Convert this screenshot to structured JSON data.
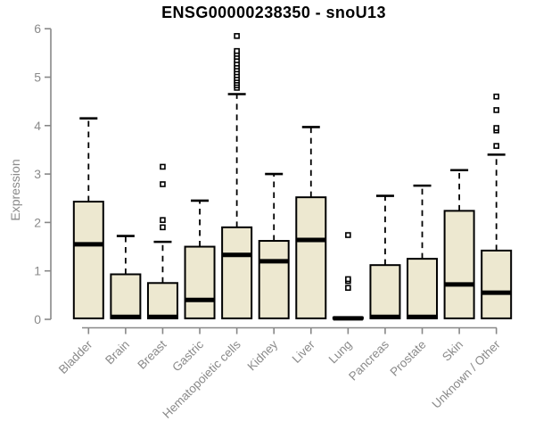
{
  "chart_data": {
    "type": "boxplot",
    "title": "ENSG00000238350 - snoU13",
    "ylabel": "Expression",
    "xlabel": "",
    "ylim": [
      0,
      6
    ],
    "yticks": [
      0,
      1,
      2,
      3,
      4,
      5,
      6
    ],
    "grid": false,
    "legend": "none",
    "categories": [
      "Bladder",
      "Brain",
      "Breast",
      "Gastric",
      "Hematopoietic cells",
      "Kidney",
      "Liver",
      "Lung",
      "Pancreas",
      "Prostate",
      "Skin",
      "Unknown / Other"
    ],
    "boxes": [
      {
        "category": "Bladder",
        "low": 0,
        "q1": 0.02,
        "median": 1.55,
        "q3": 2.43,
        "high": 4.15,
        "outliers": []
      },
      {
        "category": "Brain",
        "low": 0,
        "q1": 0.02,
        "median": 0.05,
        "q3": 0.93,
        "high": 1.72,
        "outliers": []
      },
      {
        "category": "Breast",
        "low": 0,
        "q1": 0.02,
        "median": 0.05,
        "q3": 0.75,
        "high": 1.6,
        "outliers": [
          1.9,
          2.05,
          2.79,
          3.15
        ]
      },
      {
        "category": "Gastric",
        "low": 0,
        "q1": 0.02,
        "median": 0.4,
        "q3": 1.5,
        "high": 2.45,
        "outliers": []
      },
      {
        "category": "Hematopoietic cells",
        "low": 0,
        "q1": 0.02,
        "median": 1.33,
        "q3": 1.9,
        "high": 4.65,
        "outliers": [
          4.78,
          4.83,
          4.88,
          4.93,
          4.98,
          5.04,
          5.1,
          5.16,
          5.22,
          5.28,
          5.35,
          5.42,
          5.48,
          5.54,
          5.85
        ]
      },
      {
        "category": "Kidney",
        "low": 0,
        "q1": 0.02,
        "median": 1.2,
        "q3": 1.62,
        "high": 3.0,
        "outliers": []
      },
      {
        "category": "Liver",
        "low": 0,
        "q1": 0.02,
        "median": 1.64,
        "q3": 2.52,
        "high": 3.97,
        "outliers": []
      },
      {
        "category": "Lung",
        "low": 0,
        "q1": 0.01,
        "median": 0.02,
        "q3": 0.04,
        "high": 0.05,
        "outliers": [
          0.65,
          0.79,
          0.83,
          1.74
        ]
      },
      {
        "category": "Pancreas",
        "low": 0,
        "q1": 0.02,
        "median": 0.05,
        "q3": 1.12,
        "high": 2.55,
        "outliers": []
      },
      {
        "category": "Prostate",
        "low": 0,
        "q1": 0.02,
        "median": 0.05,
        "q3": 1.25,
        "high": 2.76,
        "outliers": []
      },
      {
        "category": "Skin",
        "low": 0,
        "q1": 0.02,
        "median": 0.72,
        "q3": 2.24,
        "high": 3.08,
        "outliers": []
      },
      {
        "category": "Unknown / Other",
        "low": 0,
        "q1": 0.02,
        "median": 0.55,
        "q3": 1.42,
        "high": 3.4,
        "outliers": [
          3.58,
          3.9,
          3.95,
          4.32,
          4.6
        ]
      }
    ],
    "colors": {
      "box_fill": "#EDE8D0",
      "box_border": "#000000",
      "median": "#000000",
      "whisker": "#000000",
      "outlier_stroke": "#000000",
      "outlier_fill": "#ffffff",
      "axis": "#888888",
      "tick_label": "#8a8a8a",
      "title": "#000000"
    }
  }
}
